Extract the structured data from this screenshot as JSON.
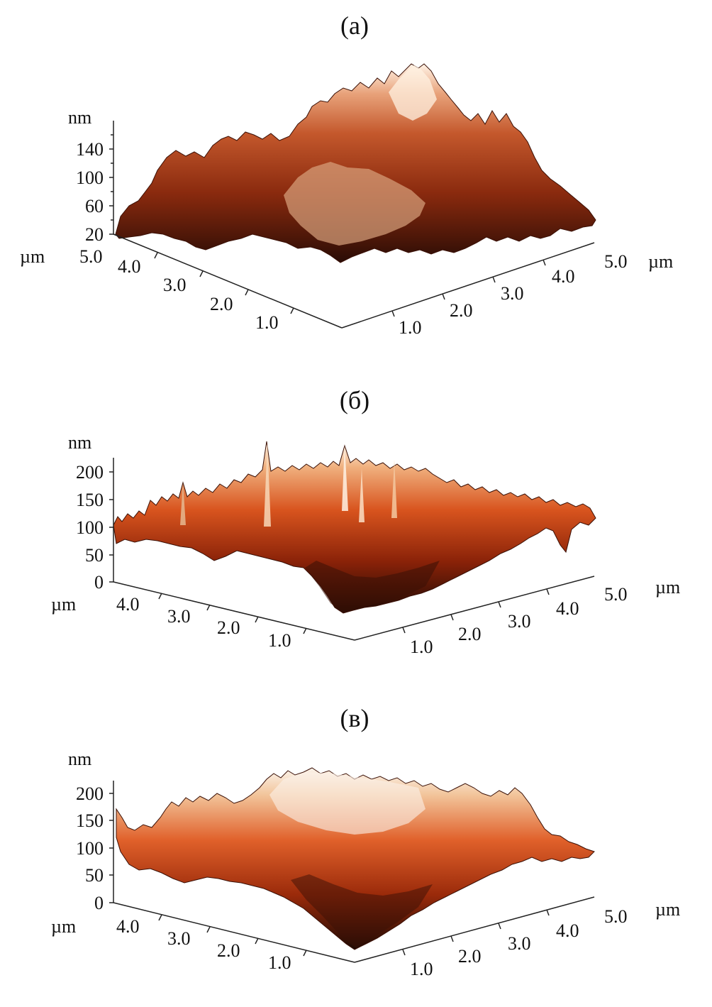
{
  "chart_data": [
    {
      "type": "surface3d",
      "panel_label": "(a)",
      "z_unit": "nm",
      "z_ticks": [
        "140",
        "100",
        "60",
        "20"
      ],
      "x_unit": "µm",
      "x_ticks": [
        "1.0",
        "2.0",
        "3.0",
        "4.0",
        "5.0"
      ],
      "y_unit": "µm",
      "y_ticks": [
        "1.0",
        "2.0",
        "3.0",
        "4.0",
        "5.0"
      ],
      "zlim": [
        20,
        170
      ]
    },
    {
      "type": "surface3d",
      "panel_label": "(б)",
      "z_unit": "nm",
      "z_ticks": [
        "200",
        "150",
        "100",
        "50",
        "0"
      ],
      "x_unit": "µm",
      "x_ticks": [
        "1.0",
        "2.0",
        "3.0",
        "4.0",
        "5.0"
      ],
      "y_unit": "µm",
      "y_ticks": [
        "1.0",
        "2.0",
        "3.0",
        "4.0"
      ],
      "zlim": [
        0,
        220
      ]
    },
    {
      "type": "surface3d",
      "panel_label": "(в)",
      "z_unit": "nm",
      "z_ticks": [
        "200",
        "150",
        "100",
        "50",
        "0"
      ],
      "x_unit": "µm",
      "x_ticks": [
        "1.0",
        "2.0",
        "3.0",
        "4.0",
        "5.0"
      ],
      "y_unit": "µm",
      "y_ticks": [
        "1.0",
        "2.0",
        "3.0",
        "4.0"
      ],
      "zlim": [
        0,
        220
      ]
    }
  ],
  "colors": {
    "dark": "#1e0a04",
    "deep": "#6a1a08",
    "mid": "#b8401a",
    "warm": "#d9704a",
    "light": "#f0c8a0",
    "peak": "#fff6ea",
    "axis": "#222222"
  }
}
